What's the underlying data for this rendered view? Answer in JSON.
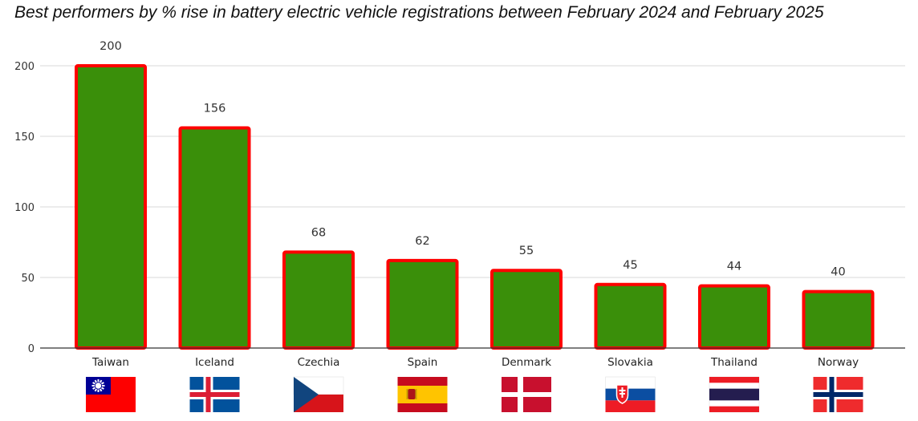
{
  "chart_data": {
    "type": "bar",
    "title": "Best performers by % rise in battery electric vehicle registrations between February 2024 and February 2025",
    "categories": [
      "Taiwan",
      "Iceland",
      "Czechia",
      "Spain",
      "Denmark",
      "Slovakia",
      "Thailand",
      "Norway"
    ],
    "values": [
      200,
      156,
      68,
      62,
      55,
      45,
      44,
      40
    ],
    "ylim": [
      0,
      200
    ],
    "yticks": [
      0,
      50,
      100,
      150,
      200
    ],
    "xlabel": "",
    "ylabel": "",
    "grid": true,
    "bar_fill": "#3a8f0a",
    "bar_stroke": "#ff0000",
    "flags": [
      "taiwan-flag",
      "iceland-flag",
      "czechia-flag",
      "spain-flag",
      "denmark-flag",
      "slovakia-flag",
      "thailand-flag",
      "norway-flag"
    ]
  }
}
